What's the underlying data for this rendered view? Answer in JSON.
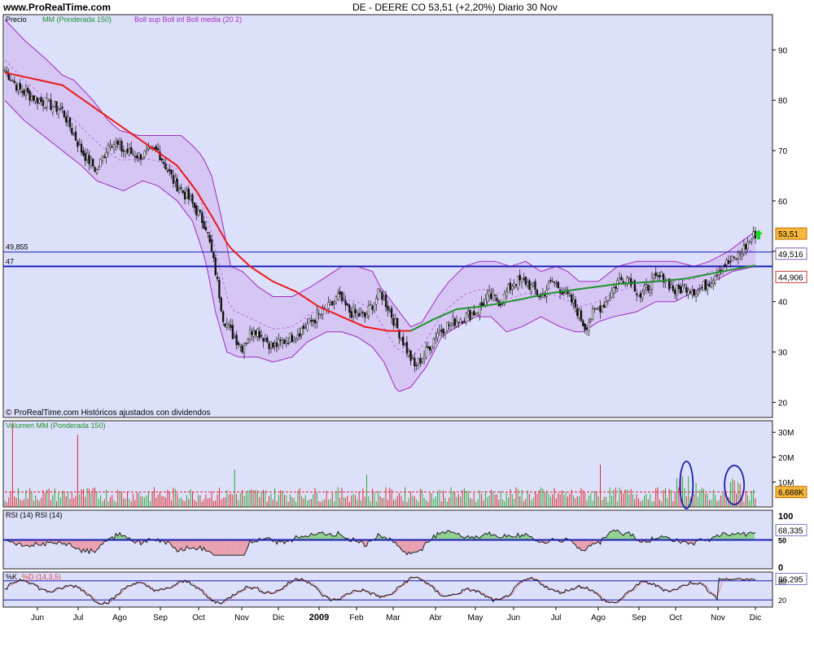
{
  "header": {
    "site": "www.ProRealTime.com",
    "title": "DE - DEERE CO     53,51 (+2,20%)    Diario  30 Nov"
  },
  "price_panel": {
    "legend": {
      "price": "Precio",
      "ma": "MM (Ponderada 150)",
      "bollinger": "Boll sup Boll inf Boll media (20 2)"
    },
    "footer": "© ProRealTime.com  Históricos ajustados con dividendos"
  },
  "volume_panel": {
    "legend": "Volumen MM (Ponderada 150)",
    "tag": "6,688K"
  },
  "rsi_panel": {
    "legend": "RSI (14)   RSI (14)",
    "tag": "68,335"
  },
  "stoch_panel": {
    "legend_k": "%K",
    "legend_d": "%D (14,3,5)",
    "tag": "86,295"
  },
  "colors": {
    "panel_bg": "#dde0fb",
    "band_fill": "#d3c1f2",
    "band_line": "#a32bbd",
    "ma150": "#ea1a1a",
    "ma150_late": "#22922f",
    "hline": "#1a1fb0",
    "volume_up": "#2ea82e",
    "volume_down": "#e02a2a",
    "arrow": "#18d918"
  },
  "chart_data": [
    {
      "type": "candlestick",
      "title": "DE - DEERE CO",
      "last_price": "53,51",
      "change": "+2,20%",
      "period": "Diario",
      "ylim": [
        17,
        97
      ],
      "yticks": [
        20,
        30,
        40,
        50,
        60,
        70,
        80,
        90
      ],
      "x_months": [
        "Jun",
        "Jul",
        "Ago",
        "Sep",
        "Oct",
        "Nov",
        "Dic",
        "2009",
        "Feb",
        "Mar",
        "Abr",
        "May",
        "Jun",
        "Jul",
        "Ago",
        "Sep",
        "Oct",
        "Nov",
        "Dic"
      ],
      "close_path": [
        [
          0,
          86
        ],
        [
          8,
          82
        ],
        [
          18,
          80
        ],
        [
          30,
          78
        ],
        [
          40,
          70
        ],
        [
          48,
          66
        ],
        [
          55,
          72
        ],
        [
          62,
          70
        ],
        [
          70,
          69
        ],
        [
          80,
          70
        ],
        [
          88,
          64
        ],
        [
          97,
          60
        ],
        [
          105,
          55
        ],
        [
          110,
          46
        ],
        [
          114,
          37
        ],
        [
          118,
          34
        ],
        [
          124,
          31
        ],
        [
          130,
          35
        ],
        [
          140,
          31
        ],
        [
          150,
          33
        ],
        [
          160,
          36
        ],
        [
          170,
          39
        ],
        [
          174,
          41
        ],
        [
          180,
          38
        ],
        [
          188,
          37
        ],
        [
          196,
          42
        ],
        [
          200,
          39
        ],
        [
          207,
          33
        ],
        [
          214,
          27
        ],
        [
          220,
          30
        ],
        [
          226,
          34
        ],
        [
          234,
          36
        ],
        [
          240,
          37
        ],
        [
          246,
          38
        ],
        [
          253,
          41
        ],
        [
          259,
          40
        ],
        [
          266,
          44
        ],
        [
          272,
          44
        ],
        [
          280,
          41
        ],
        [
          286,
          44
        ],
        [
          292,
          42
        ],
        [
          298,
          39
        ],
        [
          303,
          35
        ],
        [
          308,
          38
        ],
        [
          314,
          40
        ],
        [
          320,
          44
        ],
        [
          326,
          45
        ],
        [
          332,
          41
        ],
        [
          338,
          44
        ],
        [
          344,
          45
        ],
        [
          350,
          42
        ],
        [
          356,
          43
        ],
        [
          362,
          42
        ],
        [
          368,
          44
        ],
        [
          374,
          47
        ],
        [
          380,
          48
        ],
        [
          385,
          50
        ],
        [
          388,
          51.5
        ],
        [
          392,
          53.51
        ]
      ],
      "ma150": [
        [
          0,
          85.5
        ],
        [
          30,
          83
        ],
        [
          45,
          79
        ],
        [
          60,
          75
        ],
        [
          75,
          71
        ],
        [
          90,
          67
        ],
        [
          100,
          62
        ],
        [
          108,
          57
        ],
        [
          117,
          51
        ],
        [
          128,
          47
        ],
        [
          140,
          44
        ],
        [
          152,
          42
        ],
        [
          164,
          39
        ],
        [
          176,
          37
        ],
        [
          188,
          35
        ],
        [
          200,
          34.2
        ],
        [
          212,
          34.2
        ],
        [
          224,
          36.5
        ],
        [
          236,
          38.5
        ],
        [
          248,
          39
        ],
        [
          256,
          39.5
        ],
        [
          270,
          40.5
        ],
        [
          282,
          41.5
        ],
        [
          300,
          42.5
        ],
        [
          320,
          43.5
        ],
        [
          340,
          44
        ],
        [
          356,
          44.6
        ],
        [
          372,
          45.8
        ],
        [
          392,
          47.2
        ]
      ],
      "ma150_color_switch_index": 212,
      "boll_upper": [
        [
          0,
          96
        ],
        [
          10,
          92
        ],
        [
          22,
          88
        ],
        [
          30,
          85
        ],
        [
          36,
          84
        ],
        [
          46,
          80
        ],
        [
          54,
          76
        ],
        [
          60,
          74
        ],
        [
          70,
          73
        ],
        [
          76,
          73
        ],
        [
          84,
          73
        ],
        [
          92,
          73
        ],
        [
          98,
          71
        ],
        [
          103,
          69
        ],
        [
          108,
          65
        ],
        [
          113,
          57
        ],
        [
          118,
          47
        ],
        [
          124,
          46
        ],
        [
          132,
          43
        ],
        [
          140,
          41
        ],
        [
          150,
          41
        ],
        [
          160,
          43
        ],
        [
          168,
          45
        ],
        [
          176,
          47
        ],
        [
          184,
          47
        ],
        [
          192,
          46
        ],
        [
          196,
          43
        ],
        [
          204,
          39
        ],
        [
          212,
          35
        ],
        [
          218,
          36
        ],
        [
          226,
          41
        ],
        [
          232,
          44
        ],
        [
          240,
          47
        ],
        [
          248,
          48
        ],
        [
          256,
          48
        ],
        [
          264,
          47
        ],
        [
          272,
          48
        ],
        [
          280,
          46
        ],
        [
          288,
          47
        ],
        [
          294,
          46
        ],
        [
          300,
          44
        ],
        [
          310,
          44
        ],
        [
          320,
          47
        ],
        [
          330,
          48
        ],
        [
          340,
          48
        ],
        [
          350,
          48
        ],
        [
          360,
          47
        ],
        [
          368,
          48
        ],
        [
          378,
          50
        ],
        [
          392,
          54
        ]
      ],
      "boll_lower": [
        [
          0,
          80
        ],
        [
          10,
          76
        ],
        [
          20,
          73
        ],
        [
          30,
          70
        ],
        [
          40,
          67
        ],
        [
          48,
          64
        ],
        [
          55,
          63
        ],
        [
          62,
          62
        ],
        [
          72,
          64
        ],
        [
          80,
          63
        ],
        [
          90,
          60
        ],
        [
          98,
          56
        ],
        [
          105,
          48
        ],
        [
          110,
          38
        ],
        [
          116,
          30
        ],
        [
          122,
          29
        ],
        [
          132,
          29
        ],
        [
          140,
          28
        ],
        [
          150,
          29
        ],
        [
          158,
          32
        ],
        [
          168,
          34
        ],
        [
          176,
          34
        ],
        [
          184,
          33
        ],
        [
          192,
          31
        ],
        [
          198,
          28
        ],
        [
          205,
          22
        ],
        [
          212,
          23
        ],
        [
          220,
          27
        ],
        [
          228,
          33
        ],
        [
          236,
          35
        ],
        [
          246,
          37
        ],
        [
          254,
          37
        ],
        [
          262,
          34
        ],
        [
          270,
          35
        ],
        [
          280,
          37
        ],
        [
          290,
          35
        ],
        [
          298,
          34
        ],
        [
          302,
          34
        ],
        [
          310,
          36
        ],
        [
          318,
          37
        ],
        [
          330,
          38
        ],
        [
          340,
          40
        ],
        [
          350,
          40
        ],
        [
          360,
          42
        ],
        [
          370,
          44
        ],
        [
          380,
          46
        ],
        [
          392,
          47
        ]
      ],
      "horizontal_lines": [
        {
          "value": 49.855,
          "label": "49,855"
        },
        {
          "value": 47,
          "label": "47"
        }
      ],
      "axis_tags": [
        {
          "value": 53.51,
          "label": "53,51"
        },
        {
          "value": 49.516,
          "label": "49,516"
        },
        {
          "value": 44.906,
          "label": "44,906"
        }
      ]
    },
    {
      "type": "bar",
      "title": "Volumen",
      "ylim": [
        0,
        34
      ],
      "yticks": [
        {
          "v": 10,
          "label": "10M"
        },
        {
          "v": 20,
          "label": "20M"
        },
        {
          "v": 30,
          "label": "30M"
        }
      ],
      "ma_level": 6,
      "spikes": [
        {
          "t": 4,
          "v": 34
        },
        {
          "t": 38,
          "v": 29
        },
        {
          "t": 120,
          "v": 15
        },
        {
          "t": 189,
          "v": 13
        },
        {
          "t": 311,
          "v": 17
        }
      ],
      "last_value": "6,688K",
      "highlight_circles_t": [
        356,
        381
      ]
    },
    {
      "type": "line",
      "title": "RSI (14)",
      "ylim": [
        0,
        100
      ],
      "yticks": [
        0,
        50,
        100
      ],
      "reference": 50,
      "last_value": "68,335"
    },
    {
      "type": "line",
      "title": "%K %D (14,3,5)",
      "ylim": [
        0,
        100
      ],
      "yticks": [
        20,
        80
      ],
      "last_value": "86,295"
    }
  ]
}
